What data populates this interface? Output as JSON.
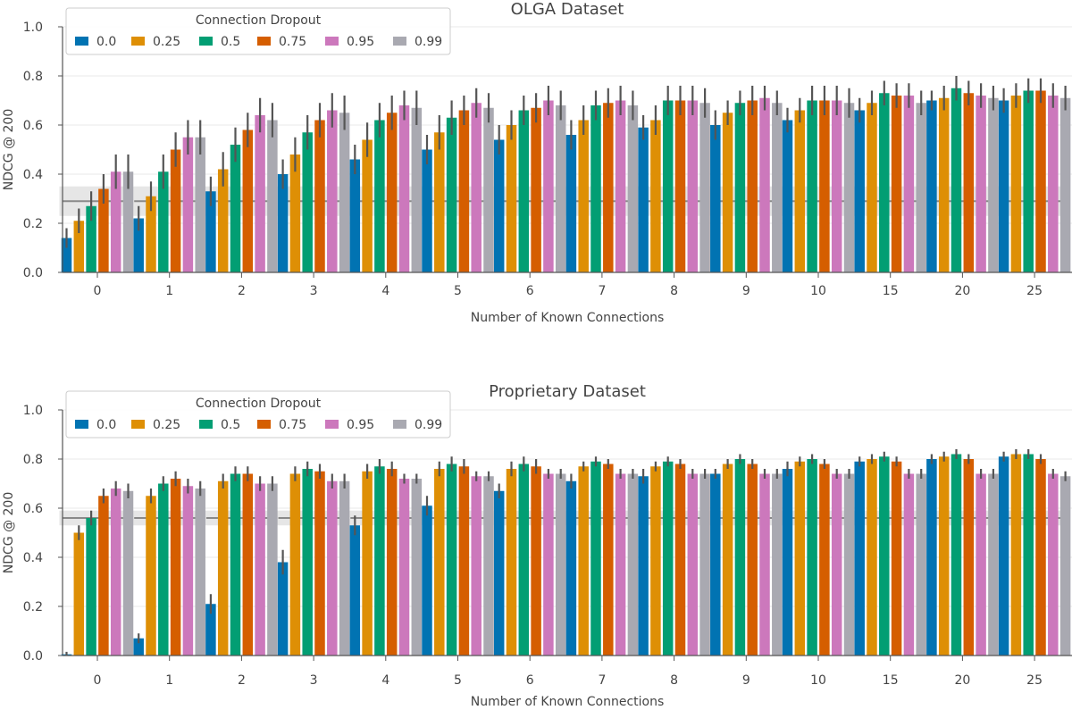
{
  "figure": {
    "legend_title": "Connection Dropout",
    "xlabel": "Number of Known Connections",
    "ylabel": "NDCG @ 200"
  },
  "chart_data": [
    {
      "type": "bar",
      "title": "OLGA Dataset",
      "xlabel": "Number of Known Connections",
      "ylabel": "NDCG @ 200",
      "ylim": [
        0,
        1.0
      ],
      "yticks": [
        "0.0",
        "0.2",
        "0.4",
        "0.6",
        "0.8",
        "1.0"
      ],
      "categories": [
        "0",
        "1",
        "2",
        "3",
        "4",
        "5",
        "6",
        "7",
        "8",
        "9",
        "10",
        "15",
        "20",
        "25"
      ],
      "legend": {
        "title": "Connection Dropout",
        "placement": "top-left"
      },
      "grid": "horizontal",
      "baseline": {
        "value": 0.29,
        "band": [
          0.23,
          0.35
        ]
      },
      "series": [
        {
          "name": "0.0",
          "color": "#0173b2",
          "values": [
            0.14,
            0.22,
            0.33,
            0.4,
            0.46,
            0.5,
            0.54,
            0.56,
            0.59,
            0.6,
            0.62,
            0.66,
            0.7,
            0.7
          ]
        },
        {
          "name": "0.25",
          "color": "#de8f05",
          "values": [
            0.21,
            0.31,
            0.42,
            0.48,
            0.54,
            0.57,
            0.6,
            0.62,
            0.62,
            0.65,
            0.66,
            0.69,
            0.71,
            0.72
          ]
        },
        {
          "name": "0.5",
          "color": "#029e73",
          "values": [
            0.27,
            0.41,
            0.52,
            0.57,
            0.62,
            0.63,
            0.66,
            0.68,
            0.7,
            0.69,
            0.7,
            0.73,
            0.75,
            0.74
          ]
        },
        {
          "name": "0.75",
          "color": "#d55e00",
          "values": [
            0.34,
            0.5,
            0.58,
            0.62,
            0.65,
            0.66,
            0.67,
            0.69,
            0.7,
            0.7,
            0.7,
            0.72,
            0.73,
            0.74
          ]
        },
        {
          "name": "0.95",
          "color": "#cc78bc",
          "values": [
            0.41,
            0.55,
            0.64,
            0.66,
            0.68,
            0.69,
            0.7,
            0.7,
            0.7,
            0.71,
            0.7,
            0.72,
            0.72,
            0.72
          ]
        },
        {
          "name": "0.99",
          "color": "#a9a9b1",
          "values": [
            0.41,
            0.55,
            0.62,
            0.65,
            0.67,
            0.67,
            0.68,
            0.68,
            0.69,
            0.69,
            0.69,
            0.69,
            0.71,
            0.71
          ]
        }
      ],
      "errors": [
        [
          0.04,
          0.05,
          0.06,
          0.06,
          0.06,
          0.06,
          0.06,
          0.06,
          0.05,
          0.06,
          0.05,
          0.05,
          0.04,
          0.05
        ],
        [
          0.05,
          0.06,
          0.07,
          0.07,
          0.07,
          0.07,
          0.06,
          0.06,
          0.06,
          0.05,
          0.05,
          0.05,
          0.05,
          0.05
        ],
        [
          0.06,
          0.07,
          0.07,
          0.07,
          0.07,
          0.07,
          0.06,
          0.06,
          0.06,
          0.05,
          0.06,
          0.05,
          0.05,
          0.05
        ],
        [
          0.06,
          0.07,
          0.07,
          0.07,
          0.07,
          0.06,
          0.06,
          0.06,
          0.06,
          0.06,
          0.06,
          0.05,
          0.05,
          0.05
        ],
        [
          0.07,
          0.07,
          0.07,
          0.07,
          0.06,
          0.06,
          0.06,
          0.06,
          0.06,
          0.05,
          0.06,
          0.05,
          0.05,
          0.05
        ],
        [
          0.07,
          0.07,
          0.07,
          0.07,
          0.07,
          0.06,
          0.06,
          0.06,
          0.06,
          0.05,
          0.06,
          0.05,
          0.05,
          0.05
        ]
      ]
    },
    {
      "type": "bar",
      "title": "Proprietary Dataset",
      "xlabel": "Number of Known Connections",
      "ylabel": "NDCG @ 200",
      "ylim": [
        0,
        1.0
      ],
      "yticks": [
        "0.0",
        "0.2",
        "0.4",
        "0.6",
        "0.8",
        "1.0"
      ],
      "categories": [
        "0",
        "1",
        "2",
        "3",
        "4",
        "5",
        "6",
        "7",
        "8",
        "9",
        "10",
        "15",
        "20",
        "25"
      ],
      "legend": {
        "title": "Connection Dropout",
        "placement": "top-left"
      },
      "grid": "horizontal",
      "baseline": {
        "value": 0.56,
        "band": [
          0.53,
          0.59
        ]
      },
      "series": [
        {
          "name": "0.0",
          "color": "#0173b2",
          "values": [
            0.005,
            0.07,
            0.21,
            0.38,
            0.53,
            0.61,
            0.67,
            0.71,
            0.73,
            0.74,
            0.76,
            0.79,
            0.8,
            0.81
          ]
        },
        {
          "name": "0.25",
          "color": "#de8f05",
          "values": [
            0.5,
            0.65,
            0.71,
            0.74,
            0.75,
            0.76,
            0.76,
            0.77,
            0.77,
            0.78,
            0.79,
            0.8,
            0.81,
            0.82
          ]
        },
        {
          "name": "0.5",
          "color": "#029e73",
          "values": [
            0.56,
            0.7,
            0.74,
            0.76,
            0.77,
            0.78,
            0.78,
            0.79,
            0.79,
            0.8,
            0.8,
            0.81,
            0.82,
            0.82
          ]
        },
        {
          "name": "0.75",
          "color": "#d55e00",
          "values": [
            0.65,
            0.72,
            0.74,
            0.75,
            0.76,
            0.77,
            0.77,
            0.78,
            0.78,
            0.78,
            0.78,
            0.79,
            0.8,
            0.8
          ]
        },
        {
          "name": "0.95",
          "color": "#cc78bc",
          "values": [
            0.68,
            0.69,
            0.7,
            0.71,
            0.72,
            0.73,
            0.74,
            0.74,
            0.74,
            0.74,
            0.74,
            0.74,
            0.74,
            0.74
          ]
        },
        {
          "name": "0.99",
          "color": "#a9a9b1",
          "values": [
            0.67,
            0.68,
            0.7,
            0.71,
            0.72,
            0.73,
            0.74,
            0.74,
            0.74,
            0.74,
            0.74,
            0.74,
            0.74,
            0.73
          ]
        }
      ],
      "errors": [
        [
          0.01,
          0.02,
          0.04,
          0.05,
          0.04,
          0.04,
          0.03,
          0.03,
          0.03,
          0.02,
          0.03,
          0.02,
          0.02,
          0.02
        ],
        [
          0.03,
          0.03,
          0.03,
          0.03,
          0.03,
          0.03,
          0.03,
          0.02,
          0.02,
          0.02,
          0.02,
          0.02,
          0.02,
          0.02
        ],
        [
          0.03,
          0.03,
          0.03,
          0.03,
          0.03,
          0.03,
          0.03,
          0.02,
          0.02,
          0.02,
          0.02,
          0.02,
          0.02,
          0.02
        ],
        [
          0.03,
          0.03,
          0.03,
          0.03,
          0.03,
          0.03,
          0.03,
          0.02,
          0.02,
          0.02,
          0.02,
          0.02,
          0.02,
          0.02
        ],
        [
          0.03,
          0.03,
          0.03,
          0.03,
          0.02,
          0.02,
          0.02,
          0.02,
          0.02,
          0.02,
          0.02,
          0.02,
          0.02,
          0.02
        ],
        [
          0.03,
          0.03,
          0.03,
          0.03,
          0.02,
          0.02,
          0.02,
          0.02,
          0.02,
          0.02,
          0.02,
          0.02,
          0.02,
          0.02
        ]
      ]
    }
  ]
}
